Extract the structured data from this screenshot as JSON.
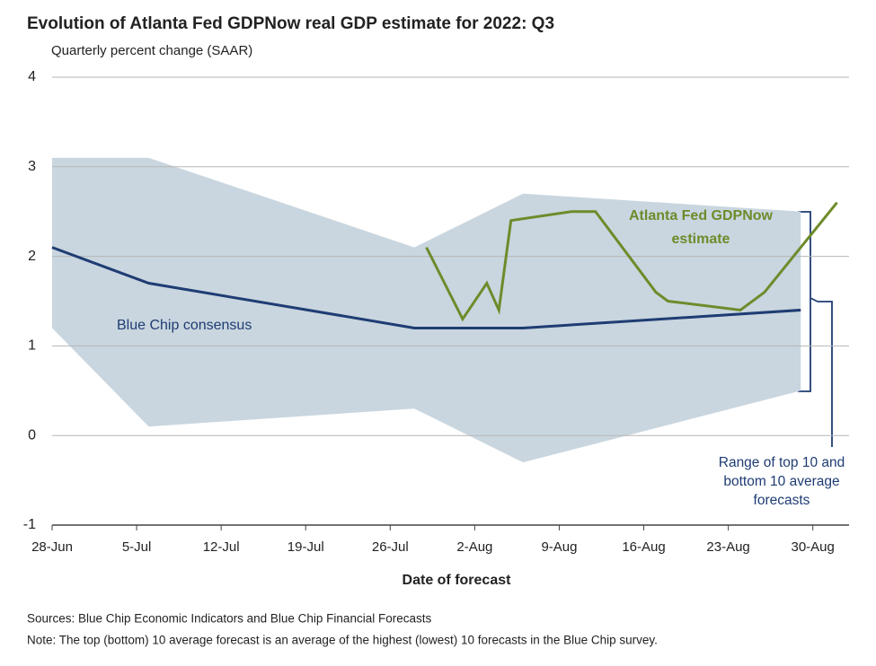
{
  "chart_data": {
    "type": "line",
    "title": "Evolution of Atlanta Fed GDPNow real GDP estimate for 2022: Q3",
    "subtitle": "Quarterly percent change (SAAR)",
    "x_label": "Date of forecast",
    "xlim": [
      "28-Jun",
      "2-Sep"
    ],
    "xticks": [
      "28-Jun",
      "5-Jul",
      "12-Jul",
      "19-Jul",
      "26-Jul",
      "2-Aug",
      "9-Aug",
      "16-Aug",
      "23-Aug",
      "30-Aug"
    ],
    "ylim": [
      -1,
      4
    ],
    "yticks": [
      -1,
      0,
      1,
      2,
      3,
      4
    ],
    "grid": true,
    "band": {
      "name": "Range of top 10 and bottom 10 average forecasts",
      "color": "#c9d6df",
      "x": [
        "28-Jun",
        "6-Jul",
        "28-Jul",
        "6-Aug",
        "29-Aug"
      ],
      "high": [
        3.1,
        3.1,
        2.1,
        2.7,
        2.5
      ],
      "low": [
        1.2,
        0.1,
        0.3,
        -0.3,
        0.5
      ]
    },
    "series": [
      {
        "name": "Blue Chip consensus",
        "color": "#1f3c73",
        "x": [
          "28-Jun",
          "6-Jul",
          "28-Jul",
          "6-Aug",
          "29-Aug"
        ],
        "values": [
          2.1,
          1.7,
          1.2,
          1.2,
          1.4
        ]
      },
      {
        "name": "Atlanta Fed GDPNow estimate",
        "color": "#6e8b2b",
        "x": [
          "29-Jul",
          "1-Aug",
          "3-Aug",
          "4-Aug",
          "5-Aug",
          "10-Aug",
          "12-Aug",
          "17-Aug",
          "18-Aug",
          "24-Aug",
          "26-Aug",
          "1-Sep"
        ],
        "values": [
          2.1,
          1.3,
          1.7,
          1.4,
          2.4,
          2.5,
          2.5,
          1.6,
          1.5,
          1.4,
          1.6,
          2.6
        ]
      }
    ],
    "sources": "Sources: Blue Chip Economic Indicators and Blue Chip Financial Forecasts",
    "note": "Note: The top (bottom) 10 average forecast is an average of the highest (lowest) 10 forecasts in the Blue Chip survey."
  }
}
